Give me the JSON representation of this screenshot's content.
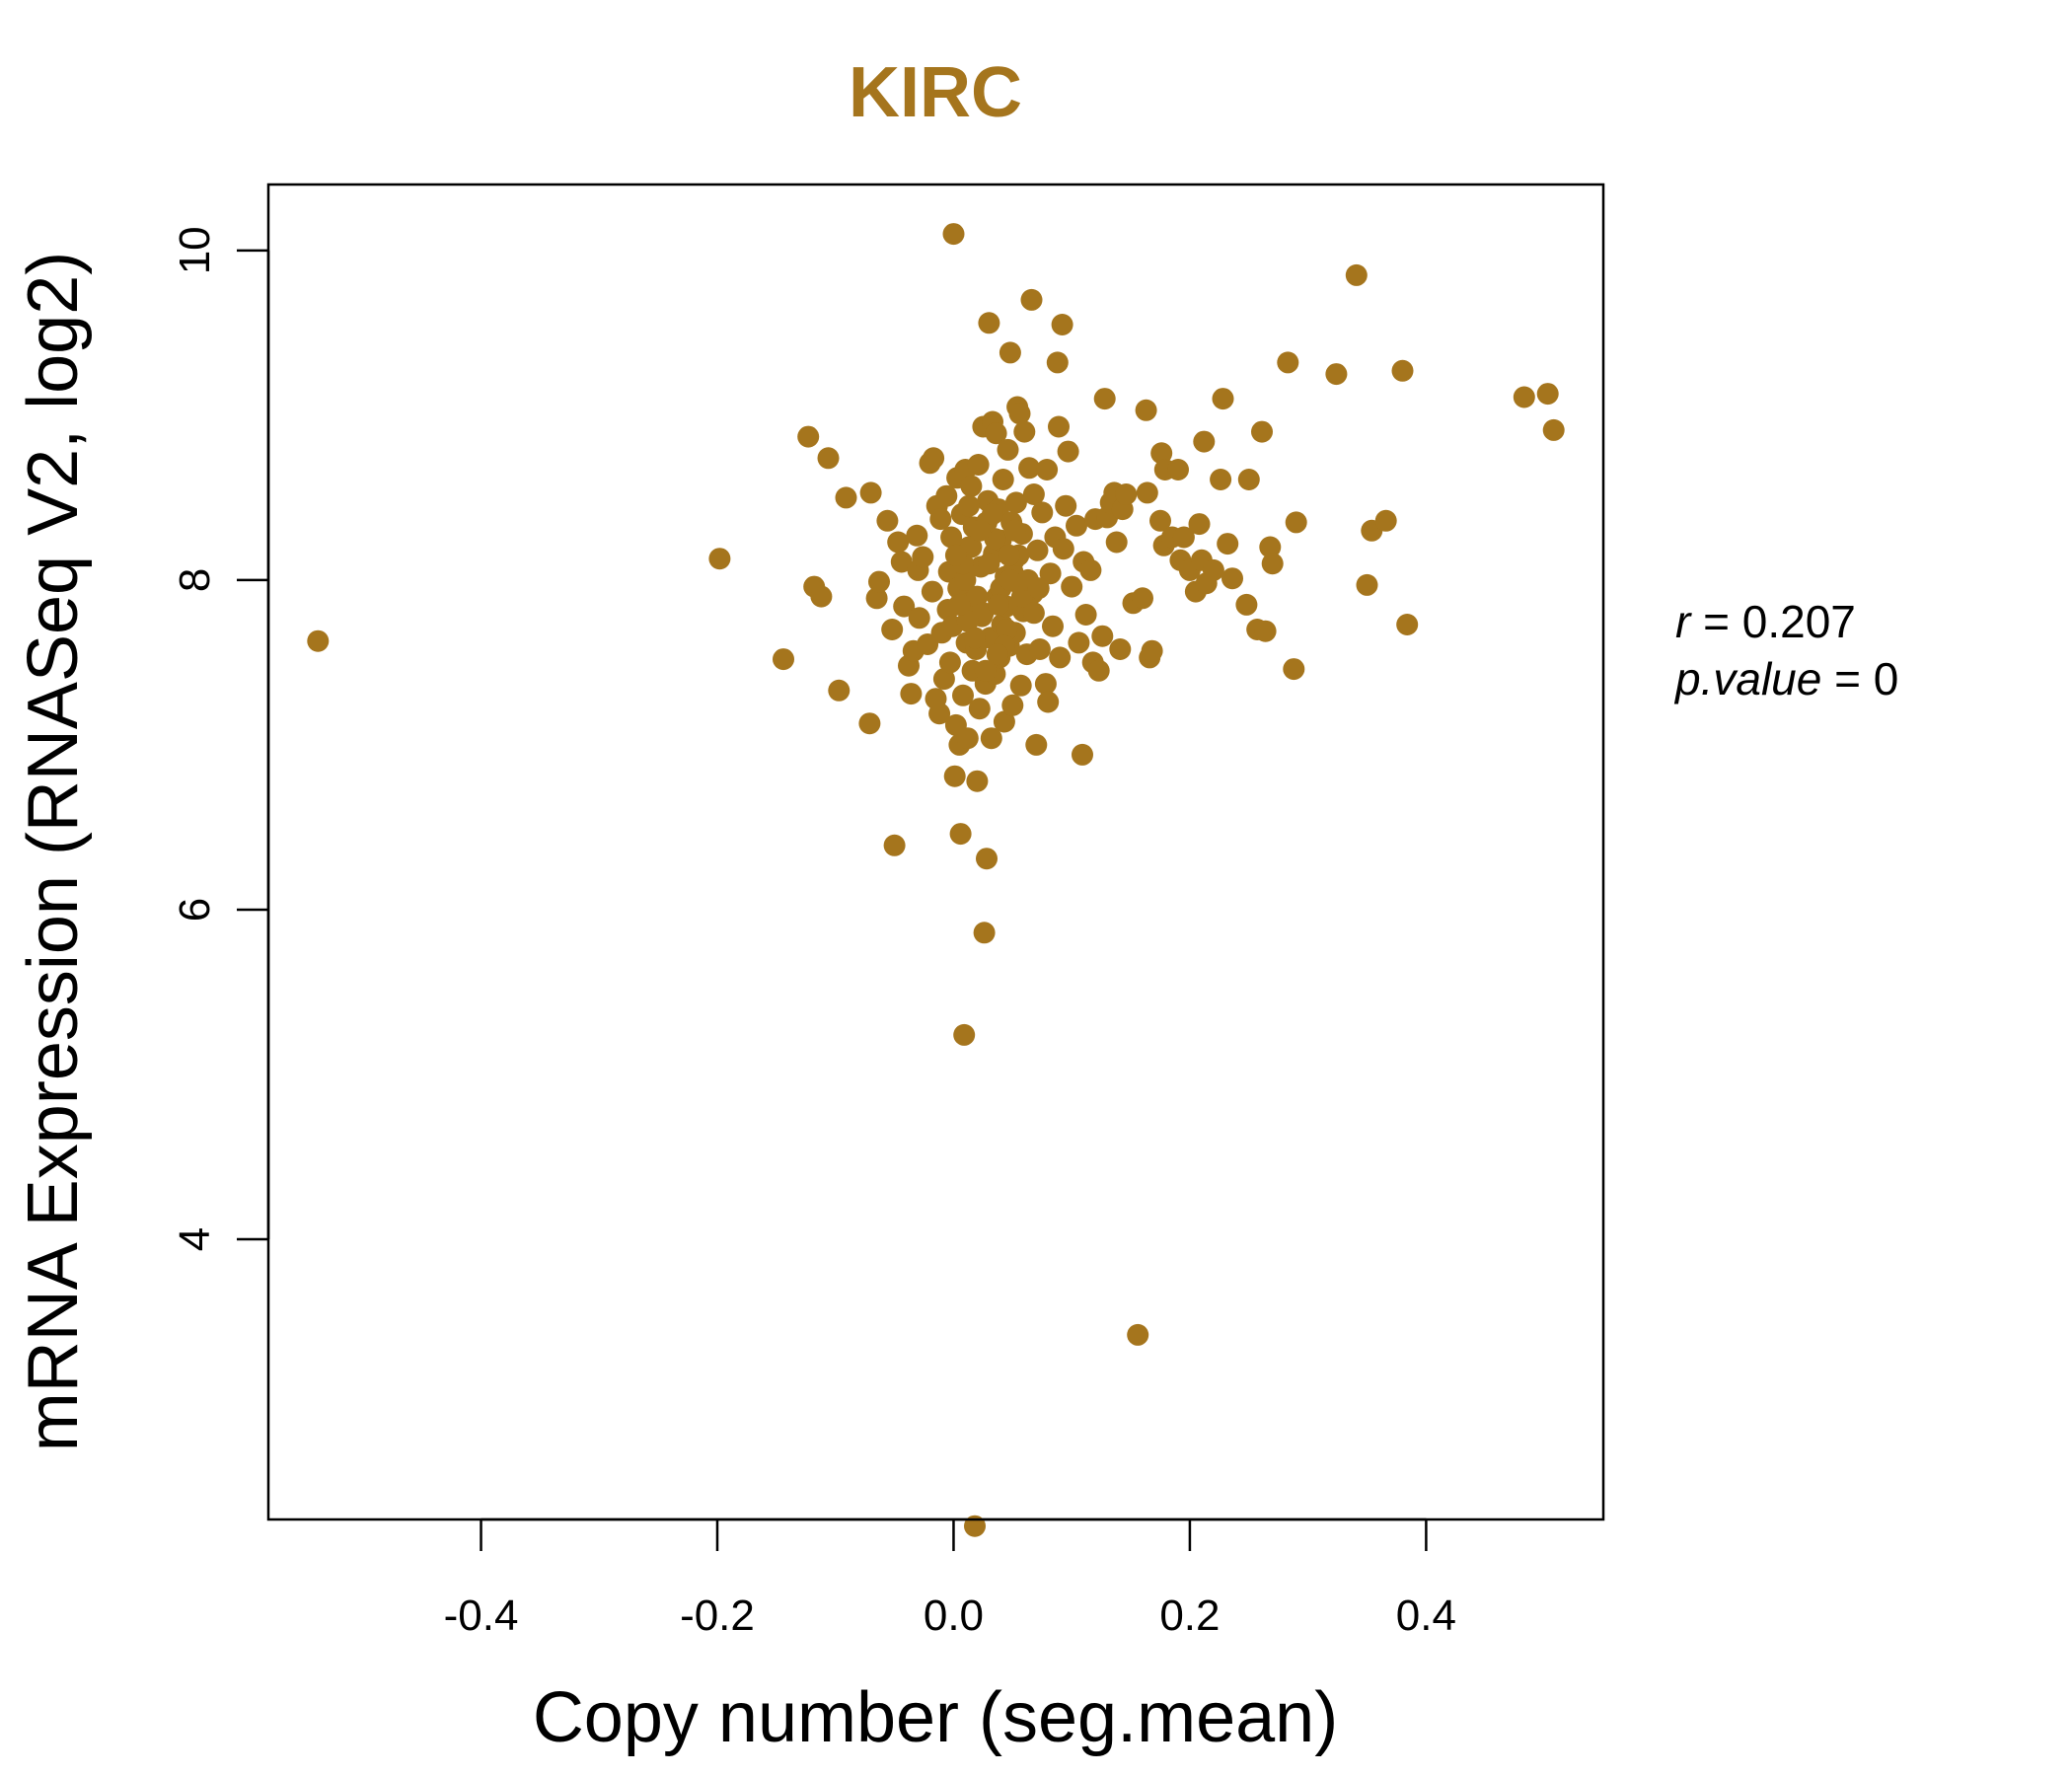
{
  "chart_data": {
    "type": "scatter",
    "title": "KIRC",
    "xlabel": "Copy number (seg.mean)",
    "ylabel": "mRNA Expression (RNASeq V2, log2)",
    "xlim": [
      -0.58,
      0.55
    ],
    "ylim": [
      2.3,
      10.4
    ],
    "x_ticks": [
      -0.4,
      -0.2,
      0.0,
      0.2,
      0.4
    ],
    "x_tick_labels": [
      "-0.4",
      "-0.2",
      "0.0",
      "0.2",
      "0.4"
    ],
    "y_ticks": [
      4,
      6,
      8,
      10
    ],
    "y_tick_labels": [
      "4",
      "6",
      "8",
      "10"
    ],
    "grid": false,
    "legend": "none",
    "point_color": "#A5751D",
    "title_color": "#A5751D",
    "annotation": {
      "r_label": "r",
      "r_value": "0.207",
      "p_label": "p.value",
      "p_value": "0"
    },
    "points": [
      [
        -0.538,
        7.63
      ],
      [
        -0.198,
        8.13
      ],
      [
        -0.144,
        7.52
      ],
      [
        -0.123,
        8.87
      ],
      [
        -0.118,
        7.96
      ],
      [
        -0.112,
        7.9
      ],
      [
        -0.106,
        8.74
      ],
      [
        -0.097,
        7.33
      ],
      [
        -0.091,
        8.5
      ],
      [
        -0.07,
        8.53
      ],
      [
        -0.071,
        7.13
      ],
      [
        -0.065,
        7.89
      ],
      [
        -0.063,
        7.99
      ],
      [
        -0.056,
        8.36
      ],
      [
        -0.052,
        7.7
      ],
      [
        -0.05,
        6.39
      ],
      [
        -0.047,
        8.23
      ],
      [
        -0.044,
        8.11
      ],
      [
        -0.042,
        7.84
      ],
      [
        -0.038,
        7.48
      ],
      [
        -0.036,
        7.31
      ],
      [
        -0.034,
        7.57
      ],
      [
        -0.031,
        8.27
      ],
      [
        -0.03,
        8.06
      ],
      [
        -0.029,
        7.77
      ],
      [
        -0.026,
        8.14
      ],
      [
        -0.022,
        7.61
      ],
      [
        -0.02,
        8.71
      ],
      [
        -0.018,
        7.93
      ],
      [
        -0.017,
        8.74
      ],
      [
        -0.015,
        7.28
      ],
      [
        -0.014,
        8.45
      ],
      [
        -0.012,
        7.19
      ],
      [
        -0.011,
        8.37
      ],
      [
        -0.01,
        7.68
      ],
      [
        -0.008,
        7.4
      ],
      [
        -0.006,
        8.51
      ],
      [
        -0.005,
        7.82
      ],
      [
        -0.004,
        8.05
      ],
      [
        -0.003,
        7.5
      ],
      [
        -0.002,
        8.26
      ],
      [
        -0.001,
        7.72
      ],
      [
        0.0,
        10.1
      ],
      [
        0.001,
        6.81
      ],
      [
        0.002,
        7.12
      ],
      [
        0.003,
        8.62
      ],
      [
        0.004,
        7.95
      ],
      [
        0.005,
        7.0
      ],
      [
        0.006,
        6.46
      ],
      [
        0.007,
        8.4
      ],
      [
        0.008,
        7.3
      ],
      [
        0.009,
        5.24
      ],
      [
        0.01,
        8.67
      ],
      [
        0.011,
        7.62
      ],
      [
        0.012,
        7.04
      ],
      [
        0.013,
        8.2
      ],
      [
        0.014,
        7.86
      ],
      [
        0.015,
        8.57
      ],
      [
        0.016,
        7.45
      ],
      [
        0.017,
        8.32
      ],
      [
        0.018,
        2.26
      ],
      [
        0.019,
        7.58
      ],
      [
        0.02,
        6.78
      ],
      [
        0.021,
        8.7
      ],
      [
        0.022,
        7.22
      ],
      [
        0.023,
        8.08
      ],
      [
        0.024,
        7.78
      ],
      [
        0.025,
        8.93
      ],
      [
        0.026,
        5.86
      ],
      [
        0.027,
        7.37
      ],
      [
        0.028,
        6.31
      ],
      [
        0.029,
        8.48
      ],
      [
        0.03,
        9.56
      ],
      [
        0.031,
        7.65
      ],
      [
        0.032,
        7.04
      ],
      [
        0.033,
        8.96
      ],
      [
        0.034,
        8.16
      ],
      [
        0.035,
        7.43
      ],
      [
        0.036,
        8.89
      ],
      [
        0.037,
        7.9
      ],
      [
        0.038,
        8.43
      ],
      [
        0.039,
        7.53
      ],
      [
        0.04,
        8.24
      ],
      [
        0.041,
        7.73
      ],
      [
        0.042,
        8.61
      ],
      [
        0.043,
        7.14
      ],
      [
        0.044,
        8.02
      ],
      [
        0.045,
        7.84
      ],
      [
        0.046,
        8.79
      ],
      [
        0.047,
        7.6
      ],
      [
        0.048,
        9.38
      ],
      [
        0.049,
        8.35
      ],
      [
        0.05,
        7.24
      ],
      [
        0.051,
        8.12
      ],
      [
        0.052,
        7.68
      ],
      [
        0.053,
        8.47
      ],
      [
        0.054,
        9.05
      ],
      [
        0.055,
        7.98
      ],
      [
        0.056,
        9.01
      ],
      [
        0.057,
        7.36
      ],
      [
        0.058,
        8.28
      ],
      [
        0.059,
        7.81
      ],
      [
        0.06,
        8.9
      ],
      [
        0.062,
        7.55
      ],
      [
        0.064,
        8.68
      ],
      [
        0.066,
        9.7
      ],
      [
        0.067,
        7.92
      ],
      [
        0.068,
        8.52
      ],
      [
        0.07,
        7.0
      ],
      [
        0.071,
        8.18
      ],
      [
        0.073,
        7.58
      ],
      [
        0.075,
        8.41
      ],
      [
        0.078,
        7.37
      ],
      [
        0.079,
        8.67
      ],
      [
        0.08,
        7.26
      ],
      [
        0.082,
        8.04
      ],
      [
        0.084,
        7.72
      ],
      [
        0.086,
        8.26
      ],
      [
        0.088,
        9.32
      ],
      [
        0.089,
        8.93
      ],
      [
        0.09,
        7.53
      ],
      [
        0.092,
        9.55
      ],
      [
        0.093,
        8.19
      ],
      [
        0.095,
        8.45
      ],
      [
        0.097,
        8.78
      ],
      [
        0.1,
        7.96
      ],
      [
        0.104,
        8.33
      ],
      [
        0.106,
        7.62
      ],
      [
        0.109,
        6.94
      ],
      [
        0.11,
        8.11
      ],
      [
        0.112,
        7.79
      ],
      [
        0.116,
        8.06
      ],
      [
        0.118,
        7.5
      ],
      [
        0.12,
        8.37
      ],
      [
        0.123,
        7.45
      ],
      [
        0.126,
        7.66
      ],
      [
        0.128,
        9.1
      ],
      [
        0.13,
        8.38
      ],
      [
        0.133,
        8.47
      ],
      [
        0.136,
        8.53
      ],
      [
        0.138,
        8.23
      ],
      [
        0.141,
        7.58
      ],
      [
        0.143,
        8.43
      ],
      [
        0.146,
        8.52
      ],
      [
        0.152,
        7.86
      ],
      [
        0.156,
        3.42
      ],
      [
        0.16,
        7.89
      ],
      [
        0.163,
        9.03
      ],
      [
        0.164,
        8.53
      ],
      [
        0.166,
        7.53
      ],
      [
        0.168,
        7.57
      ],
      [
        0.175,
        8.36
      ],
      [
        0.176,
        8.77
      ],
      [
        0.178,
        8.21
      ],
      [
        0.179,
        8.67
      ],
      [
        0.185,
        8.26
      ],
      [
        0.19,
        8.67
      ],
      [
        0.192,
        8.12
      ],
      [
        0.195,
        8.26
      ],
      [
        0.2,
        8.06
      ],
      [
        0.205,
        7.93
      ],
      [
        0.208,
        8.34
      ],
      [
        0.21,
        8.12
      ],
      [
        0.212,
        8.84
      ],
      [
        0.214,
        7.98
      ],
      [
        0.22,
        8.06
      ],
      [
        0.226,
        8.61
      ],
      [
        0.228,
        9.1
      ],
      [
        0.232,
        8.22
      ],
      [
        0.236,
        8.01
      ],
      [
        0.248,
        7.85
      ],
      [
        0.25,
        8.61
      ],
      [
        0.257,
        7.7
      ],
      [
        0.261,
        8.9
      ],
      [
        0.264,
        7.69
      ],
      [
        0.268,
        8.2
      ],
      [
        0.27,
        8.1
      ],
      [
        0.283,
        9.32
      ],
      [
        0.288,
        7.46
      ],
      [
        0.29,
        8.35
      ],
      [
        0.324,
        9.25
      ],
      [
        0.341,
        9.85
      ],
      [
        0.35,
        7.97
      ],
      [
        0.354,
        8.3
      ],
      [
        0.366,
        8.36
      ],
      [
        0.38,
        9.27
      ],
      [
        0.384,
        7.73
      ],
      [
        0.483,
        9.11
      ],
      [
        0.503,
        9.13
      ],
      [
        0.508,
        8.91
      ],
      [
        0.01,
        8.0
      ],
      [
        0.02,
        7.9
      ],
      [
        0.03,
        8.1
      ],
      [
        0.04,
        7.95
      ],
      [
        0.05,
        8.05
      ],
      [
        0.015,
        8.2
      ],
      [
        0.025,
        7.8
      ],
      [
        0.035,
        8.25
      ],
      [
        0.045,
        7.7
      ],
      [
        0.055,
        8.15
      ],
      [
        0.012,
        7.75
      ],
      [
        0.028,
        8.35
      ],
      [
        0.038,
        7.85
      ],
      [
        0.048,
        8.0
      ],
      [
        0.058,
        7.9
      ],
      [
        0.008,
        8.1
      ],
      [
        0.018,
        7.65
      ],
      [
        0.033,
        8.4
      ],
      [
        0.043,
        7.6
      ],
      [
        0.063,
        8.0
      ],
      [
        0.005,
        7.85
      ],
      [
        0.022,
        8.3
      ],
      [
        0.037,
        7.55
      ],
      [
        0.052,
        8.3
      ],
      [
        0.068,
        7.8
      ],
      [
        0.002,
        8.15
      ],
      [
        0.013,
        8.45
      ],
      [
        0.027,
        7.45
      ],
      [
        0.047,
        8.15
      ],
      [
        0.072,
        7.95
      ]
    ]
  }
}
